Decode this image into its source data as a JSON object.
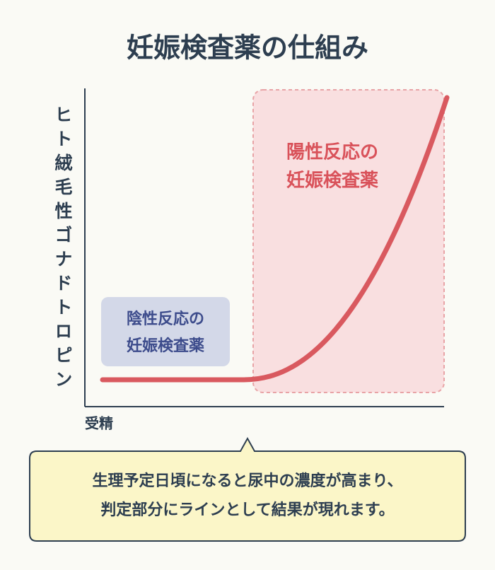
{
  "title": "妊娠検査薬の仕組み",
  "y_axis_label": "ヒト絨毛性ゴナドトロピン",
  "x_axis_label": "受精",
  "negative_box": {
    "lines": [
      "陰性反応の",
      "妊娠検査薬"
    ]
  },
  "positive_box": {
    "lines": [
      "陽性反応の",
      "妊娠検査薬"
    ]
  },
  "callout": {
    "lines": [
      "生理予定日頃になると尿中の濃度が高まり、",
      "判定部分にラインとして結果が現れます。"
    ]
  }
}
